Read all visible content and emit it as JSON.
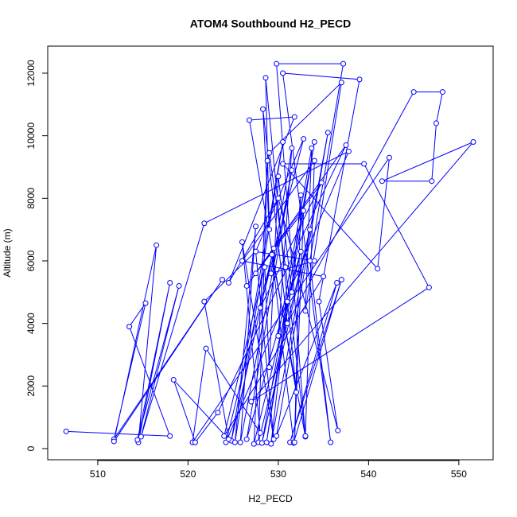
{
  "chart_data": {
    "type": "line",
    "title": "ATOM4 Southbound H2_PECD",
    "x_label": "H2_PECD",
    "y_label": "Altitude (m)",
    "markers": true,
    "x": [
      506.5,
      518,
      513.5,
      515.3,
      511.8,
      523.8,
      511.8,
      516.5,
      514.5,
      518,
      514.4,
      519,
      514.8,
      521.8,
      537.8,
      524.2,
      529.5,
      524.8,
      530.5,
      525.2,
      527.5,
      525.8,
      531.5,
      526.5,
      532.5,
      527.3,
      528.8,
      527.8,
      533.5,
      528.2,
      534,
      528.7,
      531,
      529.2,
      535.5,
      529.8,
      536.5,
      531.3,
      537,
      531.7,
      529.3,
      533,
      529.8,
      537.2,
      533.5,
      535.8,
      530.5,
      539,
      534.5,
      536.6,
      530,
      524.5,
      531.8,
      526.8,
      532,
      528.6,
      529,
      528.3,
      531,
      545,
      548.2,
      547.5,
      547,
      541.5,
      551.6,
      527,
      546.7,
      539.5,
      530.5,
      541,
      542.3,
      520.5,
      522,
      528,
      526,
      529.5,
      527.5,
      521.8,
      524.5,
      518.4,
      520.8,
      523.3,
      537.5,
      526.5,
      534.8,
      528,
      532.8,
      527.5,
      534,
      529.2,
      531.5,
      530,
      533.7,
      533,
      537,
      529,
      530.8,
      533,
      534,
      526,
      535,
      524,
      528.5,
      529,
      530,
      531.5,
      532.5,
      531.8,
      532.8,
      527.5
    ],
    "series": [
      {
        "color": "#0000ff",
        "values": [
          550,
          400,
          3900,
          4650,
          300,
          5400,
          230,
          6500,
          200,
          5300,
          280,
          5200,
          380,
          7200,
          9500,
          200,
          6400,
          250,
          9800,
          200,
          7100,
          200,
          8900,
          300,
          6300,
          150,
          9200,
          200,
          7000,
          180,
          9800,
          200,
          4700,
          150,
          10100,
          400,
          5300,
          200,
          5400,
          180,
          6200,
          380,
          12300,
          12300,
          6000,
          200,
          12000,
          11800,
          4700,
          580,
          8000,
          5300,
          10600,
          10500,
          1800,
          11850,
          7000,
          10850,
          4000,
          11400,
          11400,
          10400,
          8550,
          8550,
          9800,
          1500,
          5150,
          9100,
          9100,
          5750,
          9300,
          200,
          3200,
          500,
          6600,
          300,
          6300,
          4700,
          300,
          2200,
          200,
          1150,
          9700,
          5200,
          8500,
          4500,
          9900,
          6300,
          6000,
          5600,
          9600,
          3600,
          9600,
          4400,
          11700,
          9450,
          5800,
          400,
          9200,
          6000,
          5500,
          400,
          5800,
          2600,
          8700,
          5000,
          8100,
          200,
          7600,
          5600
        ]
      }
    ],
    "xlim": [
      504.46,
      553.8
    ],
    "ylim": [
      -356,
      12864
    ],
    "xticks": [
      510,
      520,
      530,
      540,
      550
    ],
    "yticks": [
      0,
      2000,
      4000,
      6000,
      8000,
      10000,
      12000
    ]
  }
}
